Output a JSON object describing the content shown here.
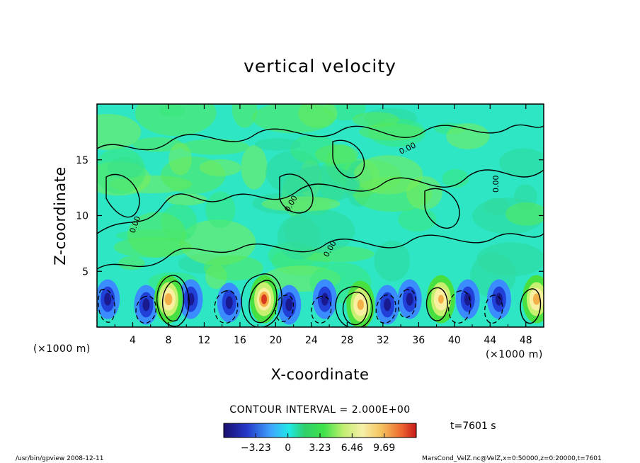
{
  "chart_data": {
    "type": "heatmap",
    "title": "vertical velocity",
    "xlabel": "X-coordinate",
    "ylabel": "Z-coordinate",
    "x_unit": "(×1000 m)",
    "x_range": [
      0,
      50
    ],
    "y_range": [
      0,
      20
    ],
    "x_ticks": [
      "4",
      "8",
      "12",
      "16",
      "20",
      "24",
      "28",
      "32",
      "36",
      "40",
      "44",
      "48"
    ],
    "y_ticks": [
      "5",
      "10",
      "15"
    ],
    "contour_interval_label": "CONTOUR INTERVAL = 2.000E+00",
    "contour_labels": [
      "0.00"
    ],
    "colorbar_ticks": [
      "−3.23",
      "0",
      "3.23",
      "6.46",
      "9.69"
    ],
    "colorbar_range": [
      -6.46,
      12.92
    ],
    "time_label": "t=7601 s",
    "updrafts": [
      {
        "x": 8.0,
        "z": 2.5,
        "peak": 7.5
      },
      {
        "x": 18.7,
        "z": 2.5,
        "peak": 9.7
      },
      {
        "x": 29.5,
        "z": 2.0,
        "peak": 6.5
      },
      {
        "x": 38.5,
        "z": 2.5,
        "peak": 5.5
      },
      {
        "x": 49.2,
        "z": 2.5,
        "peak": 7.0
      }
    ],
    "downdrafts": [
      {
        "x": 1.2,
        "z": 2.5,
        "peak": -4.5
      },
      {
        "x": 5.5,
        "z": 2.0,
        "peak": -4.0
      },
      {
        "x": 10.5,
        "z": 2.5,
        "peak": -3.5
      },
      {
        "x": 14.8,
        "z": 2.2,
        "peak": -4.5
      },
      {
        "x": 21.5,
        "z": 2.0,
        "peak": -4.0
      },
      {
        "x": 25.5,
        "z": 2.5,
        "peak": -4.0
      },
      {
        "x": 32.5,
        "z": 2.0,
        "peak": -4.5
      },
      {
        "x": 35.0,
        "z": 2.5,
        "peak": -3.5
      },
      {
        "x": 41.5,
        "z": 2.5,
        "peak": -4.5
      },
      {
        "x": 45.0,
        "z": 2.5,
        "peak": -3.5
      }
    ]
  },
  "footer": {
    "left": "/usr/bin/gpview   2008-12-11",
    "right": "MarsCond_VelZ.nc@VelZ,x=0:50000,z=0:20000,t=7601"
  }
}
